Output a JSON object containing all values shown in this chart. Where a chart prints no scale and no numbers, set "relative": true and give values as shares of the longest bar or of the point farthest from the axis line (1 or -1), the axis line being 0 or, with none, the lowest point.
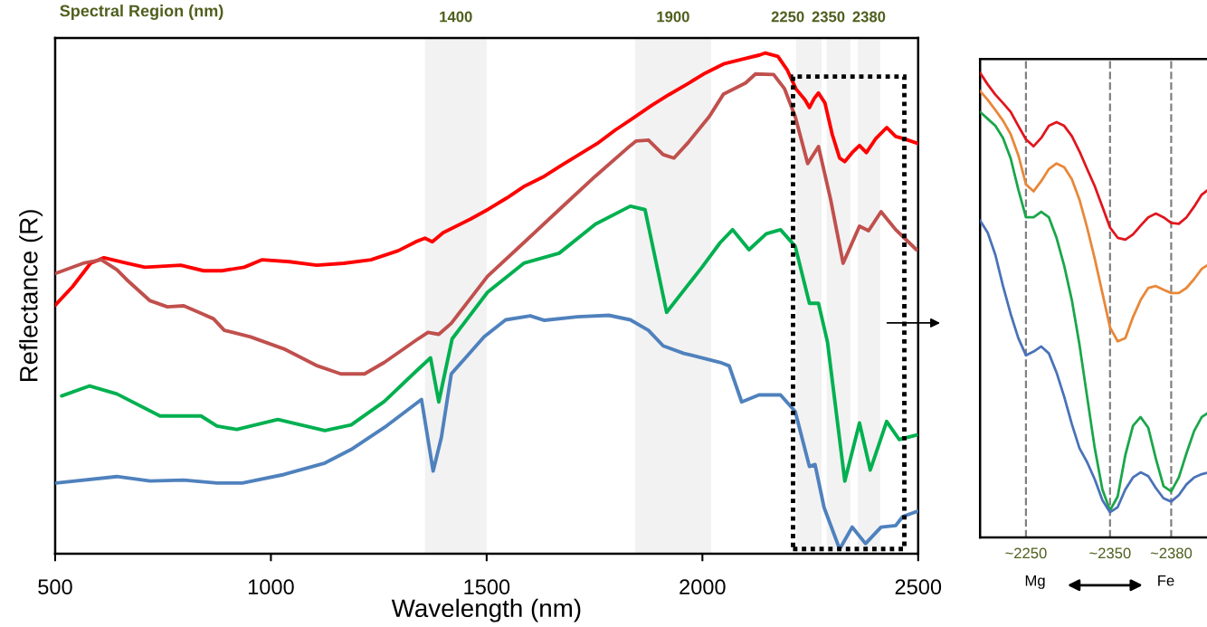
{
  "chart_data": [
    {
      "type": "line",
      "xlabel": "Wavelength (nm)",
      "ylabel": "Reflectance (R)",
      "relative": true,
      "xlim": [
        500,
        2500
      ],
      "xticks": [
        500,
        1000,
        1500,
        2000,
        2500
      ],
      "annotations": [
        "Spectral Region (nm)"
      ],
      "bands": [
        {
          "axis": "x",
          "from": 1357,
          "to": 1500,
          "label": "1400",
          "color": "#f2f2f2"
        },
        {
          "axis": "x",
          "from": 1844,
          "to": 2020,
          "label": "1900",
          "color": "#f2f2f2"
        },
        {
          "axis": "x",
          "from": 2217,
          "to": 2276,
          "label": "2250",
          "color": "#f2f2f2"
        },
        {
          "axis": "x",
          "from": 2288,
          "to": 2343,
          "label": "2350",
          "color": "#f2f2f2"
        },
        {
          "axis": "x",
          "from": 2360,
          "to": 2412,
          "label": "2380",
          "color": "#f2f2f2"
        }
      ],
      "series": [
        {
          "color": "#ff0000",
          "x": [
            500,
            540,
            582,
            613,
            666,
            708,
            791,
            844,
            886,
            938,
            980,
            1043,
            1106,
            1169,
            1232,
            1295,
            1336,
            1357,
            1374,
            1399,
            1462,
            1504,
            1546,
            1588,
            1630,
            1672,
            1714,
            1756,
            1798,
            1840,
            1882,
            1923,
            1965,
            2007,
            2049,
            2091,
            2133,
            2146,
            2175,
            2196,
            2217,
            2238,
            2248,
            2259,
            2269,
            2284,
            2301,
            2318,
            2330,
            2347,
            2364,
            2380,
            2401,
            2427,
            2448,
            2469,
            2500
          ],
          "values": [
            0.496,
            0.533,
            0.58,
            0.591,
            0.58,
            0.572,
            0.576,
            0.565,
            0.565,
            0.572,
            0.587,
            0.583,
            0.576,
            0.58,
            0.587,
            0.605,
            0.623,
            0.63,
            0.623,
            0.641,
            0.668,
            0.688,
            0.71,
            0.734,
            0.752,
            0.775,
            0.797,
            0.819,
            0.846,
            0.87,
            0.895,
            0.917,
            0.938,
            0.96,
            0.978,
            0.987,
            0.996,
            1.0,
            0.993,
            0.967,
            0.928,
            0.906,
            0.891,
            0.909,
            0.92,
            0.9,
            0.837,
            0.79,
            0.783,
            0.801,
            0.815,
            0.801,
            0.828,
            0.851,
            0.833,
            0.828,
            0.819
          ]
        },
        {
          "color": "#c0504d",
          "x": [
            502,
            565,
            607,
            643,
            666,
            720,
            760,
            798,
            838,
            867,
            892,
            953,
            1030,
            1108,
            1162,
            1217,
            1263,
            1341,
            1364,
            1389,
            1418,
            1502,
            1586,
            1668,
            1752,
            1833,
            1846,
            1875,
            1909,
            1934,
            1965,
            2016,
            2049,
            2100,
            2123,
            2165,
            2190,
            2215,
            2244,
            2269,
            2297,
            2326,
            2364,
            2385,
            2414,
            2448,
            2496
          ],
          "values": [
            0.56,
            0.58,
            0.587,
            0.567,
            0.547,
            0.505,
            0.493,
            0.495,
            0.48,
            0.469,
            0.446,
            0.433,
            0.409,
            0.375,
            0.359,
            0.359,
            0.382,
            0.429,
            0.442,
            0.438,
            0.46,
            0.554,
            0.621,
            0.687,
            0.754,
            0.815,
            0.824,
            0.826,
            0.797,
            0.79,
            0.819,
            0.873,
            0.918,
            0.94,
            0.958,
            0.957,
            0.929,
            0.873,
            0.779,
            0.813,
            0.708,
            0.58,
            0.654,
            0.645,
            0.683,
            0.647,
            0.607
          ]
        },
        {
          "color": "#00b050",
          "x": [
            515,
            580,
            643,
            743,
            838,
            875,
            921,
            1016,
            1125,
            1186,
            1263,
            1336,
            1370,
            1389,
            1420,
            1502,
            1586,
            1668,
            1752,
            1833,
            1867,
            1917,
            1999,
            2041,
            2070,
            2108,
            2148,
            2181,
            2215,
            2248,
            2269,
            2290,
            2330,
            2364,
            2389,
            2427,
            2456,
            2496
          ],
          "values": [
            0.315,
            0.335,
            0.319,
            0.275,
            0.275,
            0.255,
            0.248,
            0.268,
            0.246,
            0.257,
            0.304,
            0.364,
            0.391,
            0.303,
            0.429,
            0.522,
            0.58,
            0.6,
            0.658,
            0.694,
            0.687,
            0.482,
            0.572,
            0.621,
            0.647,
            0.607,
            0.639,
            0.647,
            0.614,
            0.5,
            0.5,
            0.422,
            0.145,
            0.261,
            0.167,
            0.264,
            0.228,
            0.237
          ]
        },
        {
          "color": "#4f81bd",
          "x": [
            502,
            643,
            720,
            798,
            875,
            934,
            1030,
            1125,
            1186,
            1263,
            1349,
            1376,
            1395,
            1418,
            1494,
            1544,
            1601,
            1634,
            1710,
            1783,
            1833,
            1875,
            1909,
            1957,
            2041,
            2062,
            2091,
            2131,
            2181,
            2215,
            2248,
            2261,
            2282,
            2318,
            2347,
            2378,
            2414,
            2448,
            2464,
            2500
          ],
          "values": [
            0.141,
            0.154,
            0.145,
            0.147,
            0.141,
            0.141,
            0.158,
            0.181,
            0.208,
            0.252,
            0.308,
            0.165,
            0.232,
            0.359,
            0.433,
            0.467,
            0.475,
            0.466,
            0.473,
            0.476,
            0.467,
            0.446,
            0.415,
            0.4,
            0.382,
            0.375,
            0.303,
            0.317,
            0.317,
            0.284,
            0.174,
            0.178,
            0.092,
            0.009,
            0.053,
            0.02,
            0.053,
            0.056,
            0.074,
            0.085
          ]
        }
      ]
    },
    {
      "type": "line",
      "relative": true,
      "categories": [
        null,
        null,
        null,
        null,
        null,
        null,
        "~2250",
        null,
        null,
        null,
        null,
        null,
        null,
        null,
        null,
        null,
        null,
        "~2350",
        null,
        null,
        null,
        null,
        null,
        null,
        null,
        "~2380",
        null,
        null,
        null,
        null,
        null
      ],
      "ref_lines": [
        {
          "axis": "x",
          "value": "~2250",
          "color": "#808080",
          "line_style": "dashed"
        },
        {
          "axis": "x",
          "value": "~2350",
          "color": "#808080",
          "line_style": "dashed"
        },
        {
          "axis": "x",
          "value": "~2380",
          "color": "#808080",
          "line_style": "dashed"
        }
      ],
      "annotations": [
        "Mg",
        "Fe"
      ],
      "series": [
        {
          "color": "#e0161e",
          "values": [
            1.0,
            0.975,
            0.953,
            0.935,
            0.916,
            0.886,
            0.857,
            0.842,
            0.86,
            0.886,
            0.894,
            0.886,
            0.864,
            0.831,
            0.793,
            0.756,
            0.712,
            0.667,
            0.645,
            0.641,
            0.652,
            0.671,
            0.689,
            0.697,
            0.689,
            0.677,
            0.675,
            0.689,
            0.712,
            0.738,
            0.75
          ]
        },
        {
          "color": "#e8883a",
          "values": [
            0.961,
            0.942,
            0.92,
            0.897,
            0.868,
            0.823,
            0.76,
            0.745,
            0.767,
            0.793,
            0.805,
            0.797,
            0.771,
            0.727,
            0.667,
            0.6,
            0.526,
            0.452,
            0.422,
            0.429,
            0.474,
            0.511,
            0.537,
            0.541,
            0.533,
            0.526,
            0.526,
            0.537,
            0.556,
            0.578,
            0.589
          ]
        },
        {
          "color": "#1aa64a",
          "values": [
            0.916,
            0.901,
            0.886,
            0.86,
            0.816,
            0.749,
            0.689,
            0.689,
            0.701,
            0.689,
            0.645,
            0.585,
            0.511,
            0.415,
            0.303,
            0.192,
            0.103,
            0.058,
            0.088,
            0.177,
            0.24,
            0.259,
            0.236,
            0.169,
            0.11,
            0.099,
            0.129,
            0.181,
            0.229,
            0.259,
            0.27
          ]
        },
        {
          "color": "#4a72b8",
          "values": [
            0.682,
            0.656,
            0.608,
            0.541,
            0.481,
            0.429,
            0.392,
            0.4,
            0.411,
            0.396,
            0.355,
            0.303,
            0.244,
            0.192,
            0.162,
            0.125,
            0.08,
            0.054,
            0.065,
            0.103,
            0.129,
            0.14,
            0.132,
            0.106,
            0.084,
            0.077,
            0.091,
            0.114,
            0.129,
            0.136,
            0.14
          ]
        }
      ]
    }
  ]
}
